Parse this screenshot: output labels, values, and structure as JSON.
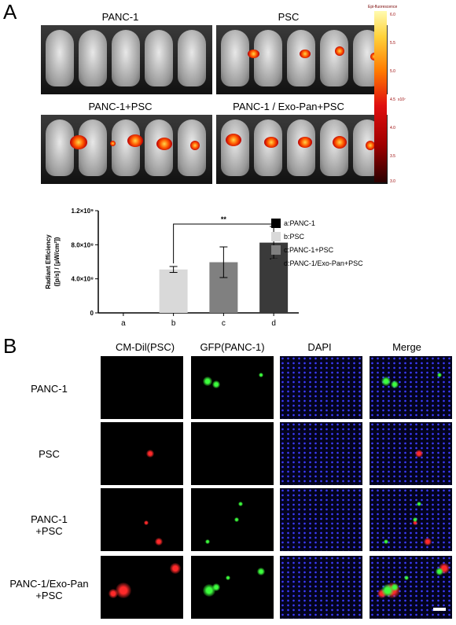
{
  "panel_a": {
    "letter": "A",
    "image_titles": [
      "PANC-1",
      "PSC",
      "PANC-1+PSC",
      "PANC-1 / Exo-Pan+PSC"
    ],
    "colorbar": {
      "title": "Epi-fluorescence",
      "ticks": [
        "6.0",
        "5.5",
        "5.0",
        "4.5",
        "4.0",
        "3.5",
        "3.0"
      ],
      "unit": "x10⁷"
    }
  },
  "chart_data": {
    "type": "bar",
    "categories": [
      "a",
      "b",
      "c",
      "d"
    ],
    "values": [
      0,
      510000000.0,
      595000000.0,
      825000000.0
    ],
    "errors": [
      0,
      35000000.0,
      180000000.0,
      190000000.0
    ],
    "colors": [
      "#000000",
      "#d9d9d9",
      "#808080",
      "#3a3a3a"
    ],
    "ylabel_line1": "Radiant Efficiency",
    "ylabel_line2": "([p/s] / [µW/cm²])",
    "ylim": [
      0,
      1200000000.0
    ],
    "yticks": [
      0,
      400000000.0,
      800000000.0,
      1200000000.0
    ],
    "ytick_labels": [
      "0",
      "4.0×10⁸",
      "8.0×10⁸",
      "1.2×10⁹"
    ],
    "significance": {
      "label": "**",
      "from": "b",
      "to": "d"
    },
    "legend": [
      "a:PANC-1",
      "b:PSC",
      "c:PANC-1+PSC",
      "d:PANC-1/Exo-Pan+PSC"
    ]
  },
  "panel_b": {
    "letter": "B",
    "columns": [
      "CM-Dil(PSC)",
      "GFP(PANC-1)",
      "DAPI",
      "Merge"
    ],
    "rows": [
      {
        "line1": "PANC-1",
        "line2": ""
      },
      {
        "line1": "PSC",
        "line2": ""
      },
      {
        "line1": "PANC-1",
        "line2": "+PSC"
      },
      {
        "line1": "PANC-1/Exo-Pan",
        "line2": "+PSC"
      }
    ]
  }
}
